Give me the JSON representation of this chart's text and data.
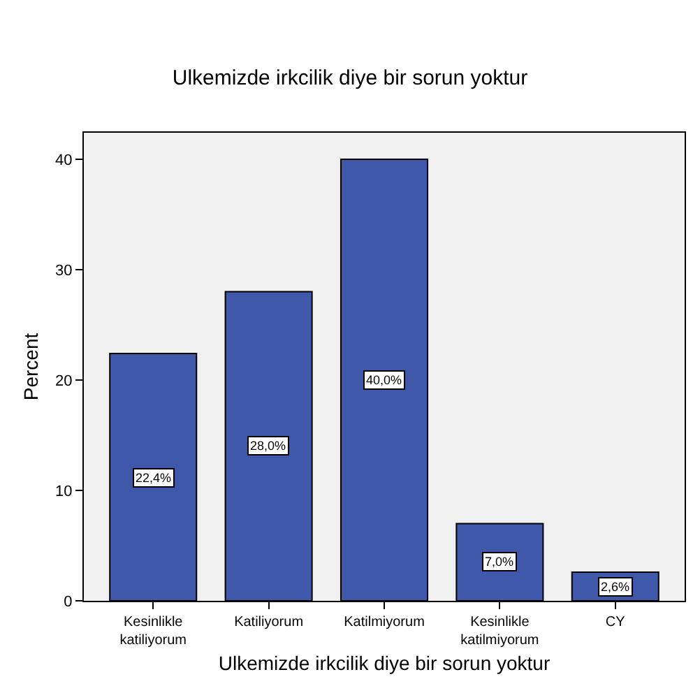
{
  "chart_data": {
    "type": "bar",
    "title": "Ulkemizde irkcilik diye bir sorun yoktur",
    "xlabel": "Ulkemizde irkcilik diye bir sorun yoktur",
    "ylabel": "Percent",
    "categories": [
      "Kesinlikle\nkatiliyorum",
      "Katiliyorum",
      "Katilmiyorum",
      "Kesinlikle\nkatilmiyorum",
      "CY"
    ],
    "values": [
      22.4,
      28.0,
      40.0,
      7.0,
      2.6
    ],
    "value_labels": [
      "22,4%",
      "28,0%",
      "40,0%",
      "7,0%",
      "2,6%"
    ],
    "color": "#3f58aa",
    "ylim": [
      0,
      42.4
    ],
    "yticks": [
      0,
      10,
      20,
      30,
      40
    ],
    "grid": false,
    "legend": false
  }
}
